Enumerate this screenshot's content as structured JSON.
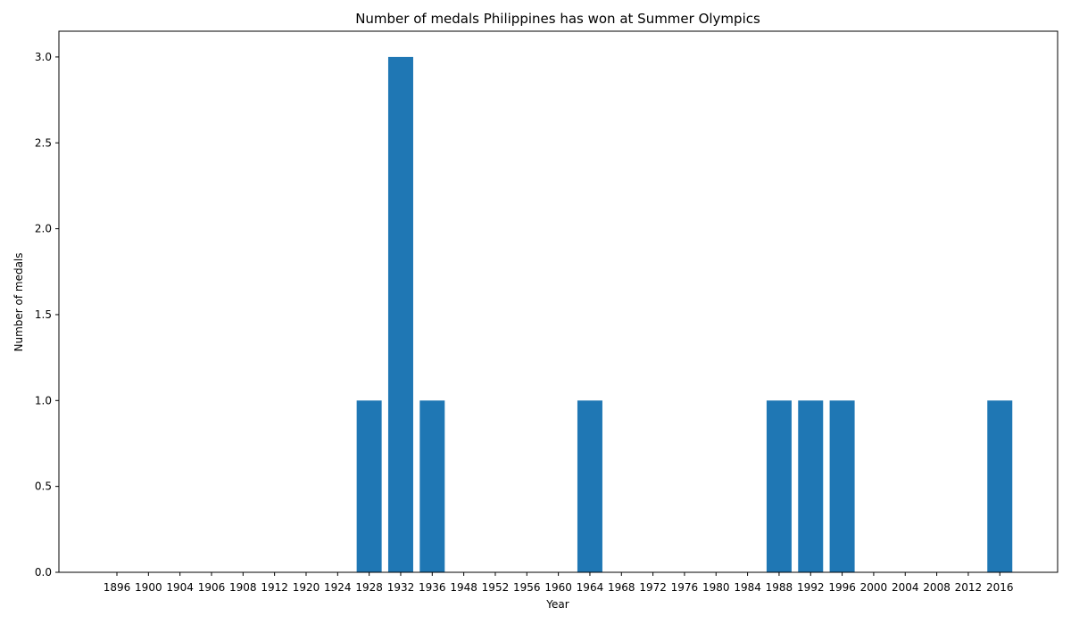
{
  "chart_data": {
    "type": "bar",
    "title": "Number of medals Philippines has won at Summer Olympics",
    "xlabel": "Year",
    "ylabel": "Number of medals",
    "categories": [
      "1896",
      "1900",
      "1904",
      "1906",
      "1908",
      "1912",
      "1920",
      "1924",
      "1928",
      "1932",
      "1936",
      "1948",
      "1952",
      "1956",
      "1960",
      "1964",
      "1968",
      "1972",
      "1976",
      "1980",
      "1984",
      "1988",
      "1992",
      "1996",
      "2000",
      "2004",
      "2008",
      "2012",
      "2016"
    ],
    "values": [
      0,
      0,
      0,
      0,
      0,
      0,
      0,
      0,
      1,
      3,
      1,
      0,
      0,
      0,
      0,
      1,
      0,
      0,
      0,
      0,
      0,
      1,
      1,
      1,
      0,
      0,
      0,
      0,
      1
    ],
    "ylim": [
      0,
      3.15
    ],
    "yticks": [
      "0.0",
      "0.5",
      "1.0",
      "1.5",
      "2.0",
      "2.5",
      "3.0"
    ],
    "bar_color": "#1f77b4",
    "grid": false
  }
}
